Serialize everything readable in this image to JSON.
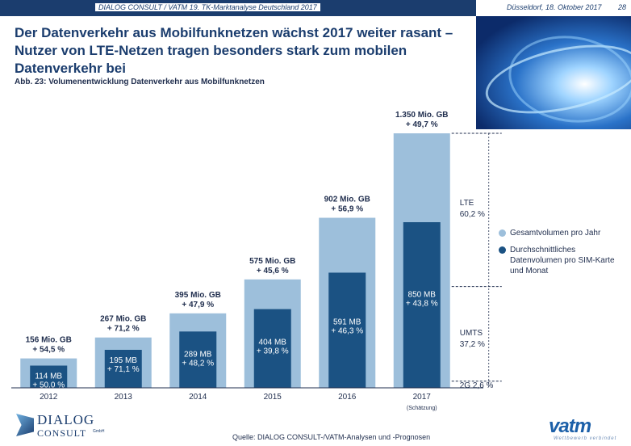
{
  "header": {
    "source_line": "DIALOG CONSULT / VATM 19. TK-Marktanalyse Deutschland 2017",
    "date": "Düsseldorf, 18. Oktober 2017",
    "page_number": "28"
  },
  "title": "Der Datenverkehr aus Mobilfunknetzen wächst 2017 weiter rasant – Nutzer von LTE-Netzen tragen besonders stark zum mobilen Datenverkehr bei",
  "figure_caption": "Abb. 23: Volumenentwicklung Datenverkehr aus Mobilfunknetzen",
  "legend": [
    {
      "label": "Gesamtvolumen pro Jahr",
      "color": "#9dbfdb"
    },
    {
      "label": "Durchschnittliches Datenvolumen pro SIM-Karte und Monat",
      "color": "#1b5283"
    }
  ],
  "footer": {
    "source": "Quelle: DIALOG CONSULT-/VATM-Analysen und -Prognosen",
    "logo_left_line1": "DIALOG",
    "logo_left_line2": "CONSULT",
    "logo_left_suffix": "GmbH",
    "logo_right_brand": "vatm",
    "logo_right_tagline": "Wettbewerb verbindet"
  },
  "chart_data": {
    "type": "bar",
    "categories": [
      "2012",
      "2013",
      "2014",
      "2015",
      "2016",
      "2017"
    ],
    "category_notes": [
      "",
      "",
      "",
      "",
      "",
      "(Schätzung)"
    ],
    "series": [
      {
        "name": "Gesamtvolumen pro Jahr",
        "unit": "Mio. GB",
        "values": [
          156,
          267,
          395,
          575,
          902,
          1350
        ],
        "value_labels": [
          "156 Mio. GB",
          "267 Mio. GB",
          "395 Mio. GB",
          "575 Mio. GB",
          "902 Mio. GB",
          "1.350 Mio. GB"
        ],
        "growth_labels": [
          "+ 54,5 %",
          "+ 71,2 %",
          "+ 47,9 %",
          "+ 45,6 %",
          "+ 56,9 %",
          "+ 49,7 %"
        ],
        "color": "#9dbfdb"
      },
      {
        "name": "Durchschnittliches Datenvolumen pro SIM-Karte und Monat",
        "unit": "MB",
        "values": [
          114,
          195,
          289,
          404,
          591,
          850
        ],
        "value_labels": [
          "114 MB",
          "195 MB",
          "289 MB",
          "404 MB",
          "591 MB",
          "850 MB"
        ],
        "growth_labels": [
          "+ 50,0 %",
          "+ 71,1 %",
          "+ 48,2 %",
          "+ 39,8 %",
          "+ 46,3 %",
          "+ 43,8 %"
        ],
        "color": "#1b5283"
      }
    ],
    "breakdown_2017": [
      {
        "name": "LTE",
        "share": 60.2,
        "label": "60,2 %"
      },
      {
        "name": "UMTS",
        "share": 37.2,
        "label": "37,2 %"
      },
      {
        "name": "2G",
        "share": 2.6,
        "label": "2G 2,6 %"
      }
    ]
  }
}
